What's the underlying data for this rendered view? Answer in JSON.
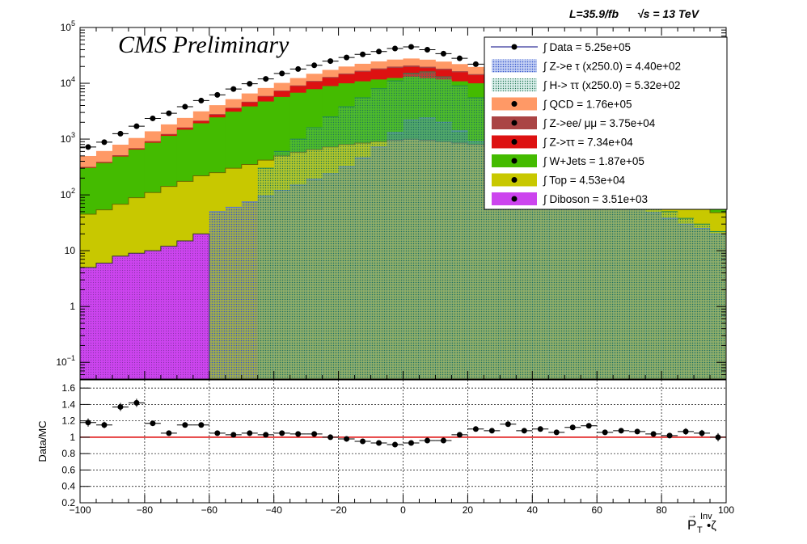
{
  "header": {
    "lumi": "L=35.9/fb",
    "energy": "√s = 13 TeV",
    "watermark": "CMS Preliminary"
  },
  "chart_data": [
    {
      "type": "area",
      "yscale": "log",
      "xlim": [
        -100,
        100
      ],
      "ylim": [
        0.05,
        100000
      ],
      "xticks": [
        -100,
        -80,
        -60,
        -40,
        -20,
        0,
        20,
        40,
        60,
        80,
        100
      ],
      "yticks": [
        {
          "value": 100000,
          "base": "10",
          "exp": "5"
        },
        {
          "value": 10000,
          "base": "10",
          "exp": "4"
        },
        {
          "value": 1000,
          "base": "10",
          "exp": "3"
        },
        {
          "value": 100,
          "base": "10",
          "exp": "2"
        },
        {
          "value": 10,
          "base": "10",
          "exp": ""
        },
        {
          "value": 1,
          "base": "1",
          "exp": ""
        },
        {
          "value": 0.1,
          "base": "10",
          "exp": "−1"
        }
      ],
      "xlabel": "",
      "ylabel": "",
      "legend_position": "top-right",
      "bin_edges": [
        -100,
        -95,
        -90,
        -85,
        -80,
        -75,
        -70,
        -65,
        -60,
        -55,
        -50,
        -45,
        -40,
        -35,
        -30,
        -25,
        -20,
        -15,
        -10,
        -5,
        0,
        5,
        10,
        15,
        20,
        25,
        30,
        35,
        40,
        45,
        50,
        55,
        60,
        65,
        70,
        75,
        80,
        85,
        90,
        95,
        100
      ],
      "stack": [
        {
          "name": "Diboson = 3.51e+03",
          "color": "#cc44ee",
          "values": [
            5,
            6,
            8,
            9,
            10,
            12,
            15,
            20,
            0.05,
            0.05,
            0.05,
            0.05,
            0.05,
            0.05,
            0.05,
            0.05,
            0.05,
            0.05,
            0.05,
            0.05,
            0.05,
            0.05,
            0.05,
            0.05,
            0.05,
            0.05,
            0.05,
            0.05,
            0.05,
            0.05,
            0.05,
            0.05,
            0.05,
            0.05,
            0.05,
            0.05,
            0.05,
            0.05,
            0.05,
            0.05
          ]
        },
        {
          "name": "Top = 4.53e+04",
          "color": "#c8c800",
          "values": [
            40,
            48,
            60,
            80,
            100,
            130,
            160,
            200,
            250,
            300,
            350,
            420,
            500,
            580,
            650,
            720,
            800,
            850,
            900,
            950,
            1000,
            950,
            900,
            850,
            800,
            720,
            650,
            580,
            500,
            420,
            350,
            300,
            250,
            200,
            160,
            130,
            100,
            80,
            60,
            48
          ]
        },
        {
          "name": "W+Jets = 1.87e+05",
          "color": "#44bb00",
          "values": [
            260,
            320,
            420,
            560,
            750,
            1000,
            1300,
            1700,
            2200,
            2800,
            3500,
            4300,
            5200,
            6200,
            7200,
            8200,
            9200,
            10000,
            10800,
            11500,
            12000,
            11500,
            10800,
            10000,
            9200,
            8200,
            7200,
            6200,
            5200,
            4300,
            3500,
            2800,
            2200,
            1700,
            1300,
            1000,
            750,
            560,
            420,
            320
          ]
        },
        {
          "name": "Z->ττ = 7.34e+04",
          "color": "#dd1111",
          "values": [
            5,
            8,
            12,
            20,
            35,
            60,
            100,
            170,
            280,
            450,
            700,
            1050,
            1500,
            2100,
            2800,
            3600,
            4400,
            5200,
            5900,
            6400,
            6600,
            6300,
            5700,
            4900,
            4000,
            3100,
            2300,
            1600,
            1100,
            700,
            450,
            280,
            170,
            100,
            60,
            35,
            20,
            12,
            8,
            5
          ]
        },
        {
          "name": "Z->ee/ μμ = 3.75e+04",
          "color": "#aa4444",
          "values": [
            8,
            10,
            14,
            18,
            24,
            32,
            42,
            55,
            72,
            95,
            125,
            165,
            215,
            280,
            360,
            460,
            580,
            720,
            880,
            1050,
            1200,
            1050,
            880,
            720,
            580,
            460,
            360,
            280,
            215,
            165,
            125,
            95,
            72,
            55,
            42,
            32,
            24,
            18,
            14,
            10
          ]
        },
        {
          "name": "QCD = 1.76e+05",
          "color": "#ff9966",
          "values": [
            180,
            220,
            280,
            360,
            460,
            600,
            780,
            1000,
            1250,
            1550,
            1900,
            2300,
            2750,
            3250,
            3800,
            4400,
            5000,
            5600,
            6200,
            6700,
            7000,
            6700,
            6200,
            5600,
            5000,
            4400,
            3800,
            3250,
            2750,
            2300,
            1900,
            1550,
            1250,
            1000,
            780,
            600,
            460,
            360,
            280,
            220
          ]
        }
      ],
      "overlays": [
        {
          "name": "Z->e τ (x250.0) = 4.40e+02",
          "color": "#5577dd",
          "values": [
            0.05,
            0.05,
            0.05,
            0.05,
            0.05,
            0.05,
            0.05,
            0.05,
            50,
            60,
            75,
            95,
            120,
            150,
            190,
            240,
            320,
            460,
            720,
            1300,
            2200,
            2400,
            2000,
            1400,
            900,
            620,
            440,
            320,
            240,
            180,
            140,
            110,
            90,
            75,
            60,
            48,
            38,
            30,
            25,
            20
          ]
        },
        {
          "name": "H-> ττ (x250.0) = 5.32e+02",
          "color": "#228855",
          "values": [
            0.05,
            0.05,
            0.05,
            0.05,
            0.05,
            0.05,
            0.05,
            0.05,
            0.05,
            0.05,
            0.05,
            300,
            600,
            1000,
            1600,
            2500,
            3800,
            5500,
            8000,
            11000,
            15000,
            16000,
            13000,
            9000,
            5500,
            3200,
            1900,
            1100,
            700,
            480,
            330,
            230,
            170,
            120,
            90,
            65,
            50,
            38,
            30,
            22
          ]
        }
      ],
      "data": {
        "name": "Data = 5.25e+05",
        "values": [
          720,
          880,
          1250,
          1700,
          2350,
          2900,
          3800,
          4900,
          6200,
          7900,
          9800,
          12000,
          15000,
          18000,
          21000,
          25000,
          29000,
          33000,
          37000,
          42000,
          45000,
          40000,
          34000,
          28000,
          22000,
          17000,
          13000,
          10000,
          7500,
          5600,
          4200,
          3100,
          2300,
          1700,
          1200,
          900,
          650,
          480,
          350,
          260
        ]
      }
    },
    {
      "type": "scatter",
      "xlim": [
        -100,
        100
      ],
      "ylim": [
        0.2,
        1.7
      ],
      "xticks": [
        -100,
        -80,
        -60,
        -40,
        -20,
        0,
        20,
        40,
        60,
        80,
        100
      ],
      "yticks": [
        0.2,
        0.4,
        0.6,
        0.8,
        1,
        1.2,
        1.4,
        1.6
      ],
      "ylabel": "Data/MC",
      "xlabel_main": "P",
      "xlabel_vec": "→",
      "xlabel_sub": "T",
      "xlabel_sup": "Inv",
      "xlabel_tail": " •ζ",
      "reference_line": 1.0,
      "x": [
        -97.5,
        -92.5,
        -87.5,
        -82.5,
        -77.5,
        -72.5,
        -67.5,
        -62.5,
        -57.5,
        -52.5,
        -47.5,
        -42.5,
        -37.5,
        -32.5,
        -27.5,
        -22.5,
        -17.5,
        -12.5,
        -7.5,
        -2.5,
        2.5,
        7.5,
        12.5,
        17.5,
        22.5,
        27.5,
        32.5,
        37.5,
        42.5,
        47.5,
        52.5,
        57.5,
        62.5,
        67.5,
        72.5,
        77.5,
        82.5,
        87.5,
        92.5,
        97.5
      ],
      "values": [
        1.18,
        1.15,
        1.37,
        1.42,
        1.17,
        1.05,
        1.15,
        1.15,
        1.05,
        1.03,
        1.05,
        1.03,
        1.05,
        1.04,
        1.04,
        1.0,
        0.98,
        0.95,
        0.93,
        0.91,
        0.93,
        0.96,
        0.96,
        1.03,
        1.1,
        1.08,
        1.16,
        1.08,
        1.1,
        1.06,
        1.12,
        1.14,
        1.06,
        1.08,
        1.07,
        1.04,
        1.02,
        1.07,
        1.05,
        1.0
      ],
      "errors": [
        0.05,
        0.04,
        0.05,
        0.05,
        0.03,
        0.03,
        0.02,
        0.02,
        0.02,
        0.02,
        0.01,
        0.01,
        0.01,
        0.01,
        0.01,
        0.01,
        0.01,
        0.01,
        0.01,
        0.01,
        0.01,
        0.01,
        0.01,
        0.01,
        0.01,
        0.01,
        0.01,
        0.01,
        0.01,
        0.01,
        0.01,
        0.02,
        0.02,
        0.02,
        0.02,
        0.03,
        0.03,
        0.04,
        0.04,
        0.05
      ]
    }
  ]
}
